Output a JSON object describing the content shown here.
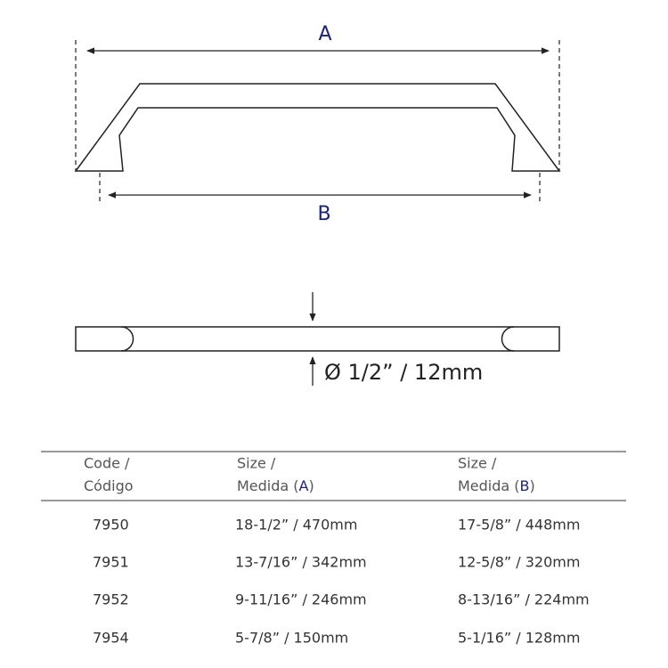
{
  "drawing": {
    "label_a": "A",
    "label_b": "B",
    "diameter": "Ø 1/2” / 12mm"
  },
  "table": {
    "headers": [
      {
        "line1": "Code /",
        "line2": "Código"
      },
      {
        "line1": "Size /",
        "line2": "Medida (",
        "key": "A",
        "close": ")"
      },
      {
        "line1": "Size /",
        "line2": "Medida (",
        "key": "B",
        "close": ")"
      }
    ],
    "rows": [
      [
        "7950",
        "18-1/2” / 470mm",
        "17-5/8” / 448mm"
      ],
      [
        "7951",
        "13-7/16” / 342mm",
        "12-5/8” / 320mm"
      ],
      [
        "7952",
        "9-11/16” / 246mm",
        "8-13/16” / 224mm"
      ],
      [
        "7954",
        "5-7/8” / 150mm",
        "5-1/16” / 128mm"
      ]
    ]
  }
}
